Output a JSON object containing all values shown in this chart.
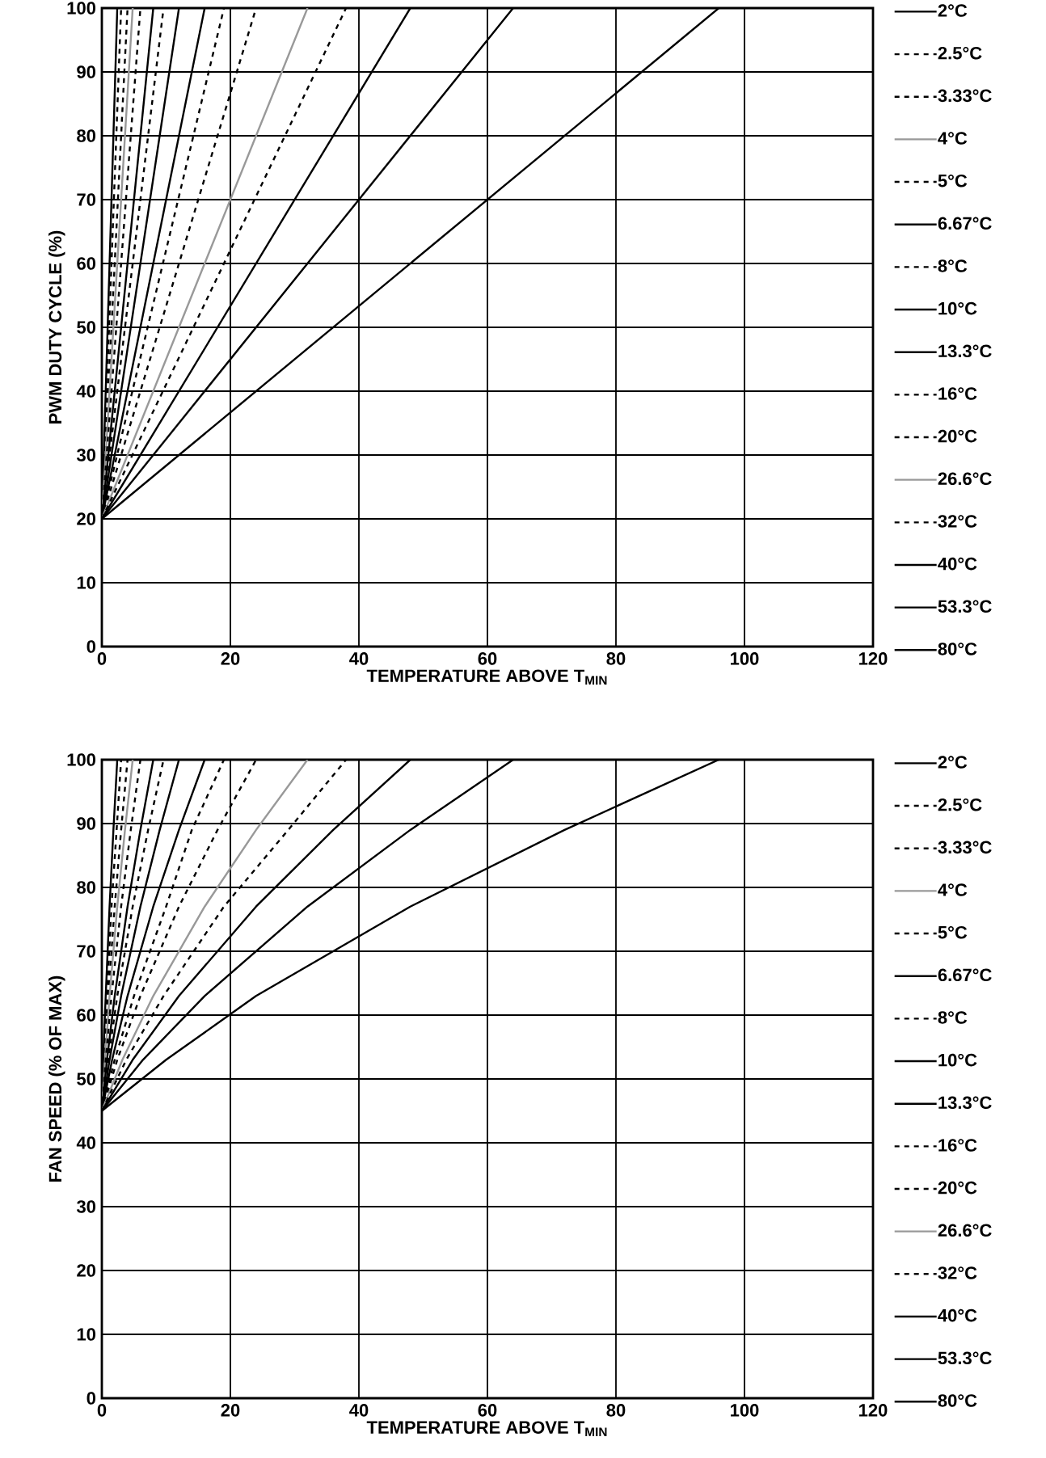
{
  "chart_data": [
    {
      "type": "line",
      "xlabel": "TEMPERATURE ABOVE T$_{MIN}$",
      "ylabel": "PWM DUTY CYCLE (%)",
      "xlim": [
        0,
        120
      ],
      "ylim": [
        0,
        100
      ],
      "xticks": [
        0,
        20,
        40,
        60,
        80,
        100,
        120
      ],
      "yticks": [
        0,
        10,
        20,
        30,
        40,
        50,
        60,
        70,
        80,
        90,
        100
      ],
      "grid": true,
      "legend": "right",
      "series": [
        {
          "name": "2°C",
          "color": "#000000",
          "line_style": "solid",
          "x": [
            0,
            2.4
          ],
          "values": [
            20,
            100
          ]
        },
        {
          "name": "2.5°C",
          "color": "#000000",
          "line_style": "dashed",
          "x": [
            0,
            3
          ],
          "values": [
            20,
            100
          ]
        },
        {
          "name": "3.33°C",
          "color": "#000000",
          "line_style": "dashed",
          "x": [
            0,
            4
          ],
          "values": [
            20,
            100
          ]
        },
        {
          "name": "4°C",
          "color": "#999999",
          "line_style": "solid",
          "x": [
            0,
            4.8
          ],
          "values": [
            20,
            100
          ]
        },
        {
          "name": "5°C",
          "color": "#000000",
          "line_style": "dashed",
          "x": [
            0,
            6
          ],
          "values": [
            20,
            100
          ]
        },
        {
          "name": "6.67°C",
          "color": "#000000",
          "line_style": "solid",
          "x": [
            0,
            8
          ],
          "values": [
            20,
            100
          ]
        },
        {
          "name": "8°C",
          "color": "#000000",
          "line_style": "dashed",
          "x": [
            0,
            9.6
          ],
          "values": [
            20,
            100
          ]
        },
        {
          "name": "10°C",
          "color": "#000000",
          "line_style": "solid",
          "x": [
            0,
            12
          ],
          "values": [
            20,
            100
          ]
        },
        {
          "name": "13.3°C",
          "color": "#000000",
          "line_style": "solid",
          "x": [
            0,
            16
          ],
          "values": [
            20,
            100
          ]
        },
        {
          "name": "16°C",
          "color": "#000000",
          "line_style": "dashed",
          "x": [
            0,
            19
          ],
          "values": [
            20,
            100
          ]
        },
        {
          "name": "20°C",
          "color": "#000000",
          "line_style": "dashed",
          "x": [
            0,
            24
          ],
          "values": [
            20,
            100
          ]
        },
        {
          "name": "26.6°C",
          "color": "#999999",
          "line_style": "solid",
          "x": [
            0,
            32
          ],
          "values": [
            20,
            100
          ]
        },
        {
          "name": "32°C",
          "color": "#000000",
          "line_style": "dashed",
          "x": [
            0,
            38
          ],
          "values": [
            20,
            100
          ]
        },
        {
          "name": "40°C",
          "color": "#000000",
          "line_style": "solid",
          "x": [
            0,
            48
          ],
          "values": [
            20,
            100
          ]
        },
        {
          "name": "53.3°C",
          "color": "#000000",
          "line_style": "solid",
          "x": [
            0,
            64
          ],
          "values": [
            20,
            100
          ]
        },
        {
          "name": "80°C",
          "color": "#000000",
          "line_style": "solid",
          "x": [
            0,
            96
          ],
          "values": [
            20,
            100
          ]
        }
      ]
    },
    {
      "type": "line",
      "xlabel": "TEMPERATURE ABOVE T$_{MIN}$",
      "ylabel": "FAN SPEED (% OF MAX)",
      "xlim": [
        0,
        120
      ],
      "ylim": [
        0,
        100
      ],
      "xticks": [
        0,
        20,
        40,
        60,
        80,
        100,
        120
      ],
      "yticks": [
        0,
        10,
        20,
        30,
        40,
        50,
        60,
        70,
        80,
        90,
        100
      ],
      "grid": true,
      "legend": "right",
      "series": [
        {
          "name": "2°C",
          "color": "#000000",
          "line_style": "solid",
          "x": [
            0,
            0.2,
            0.6,
            1.2,
            1.8,
            2.4
          ],
          "values": [
            45,
            53,
            63,
            77,
            89,
            100
          ]
        },
        {
          "name": "2.5°C",
          "color": "#000000",
          "line_style": "dashed",
          "x": [
            0,
            0.3,
            0.8,
            1.5,
            2.3,
            3
          ],
          "values": [
            45,
            53,
            63,
            77,
            89,
            100
          ]
        },
        {
          "name": "3.33°C",
          "color": "#000000",
          "line_style": "dashed",
          "x": [
            0,
            0.4,
            1,
            2,
            3,
            4
          ],
          "values": [
            45,
            53,
            63,
            77,
            89,
            100
          ]
        },
        {
          "name": "4°C",
          "color": "#999999",
          "line_style": "solid",
          "x": [
            0,
            0.5,
            1.2,
            2.4,
            3.6,
            4.8
          ],
          "values": [
            45,
            53,
            63,
            77,
            89,
            100
          ]
        },
        {
          "name": "5°C",
          "color": "#000000",
          "line_style": "dashed",
          "x": [
            0,
            0.6,
            1.5,
            3,
            4.5,
            6
          ],
          "values": [
            45,
            53,
            63,
            77,
            89,
            100
          ]
        },
        {
          "name": "6.67°C",
          "color": "#000000",
          "line_style": "solid",
          "x": [
            0,
            0.8,
            2,
            4,
            6,
            8
          ],
          "values": [
            45,
            53,
            63,
            77,
            89,
            100
          ]
        },
        {
          "name": "8°C",
          "color": "#000000",
          "line_style": "dashed",
          "x": [
            0,
            1,
            2.4,
            4.8,
            7.2,
            9.6
          ],
          "values": [
            45,
            53,
            63,
            77,
            89,
            100
          ]
        },
        {
          "name": "10°C",
          "color": "#000000",
          "line_style": "solid",
          "x": [
            0,
            1.2,
            3,
            6,
            9,
            12
          ],
          "values": [
            45,
            53,
            63,
            77,
            89,
            100
          ]
        },
        {
          "name": "13.3°C",
          "color": "#000000",
          "line_style": "solid",
          "x": [
            0,
            1.6,
            4,
            8,
            12,
            16
          ],
          "values": [
            45,
            53,
            63,
            77,
            89,
            100
          ]
        },
        {
          "name": "16°C",
          "color": "#000000",
          "line_style": "dashed",
          "x": [
            0,
            2,
            5,
            10,
            14,
            19
          ],
          "values": [
            45,
            53,
            63,
            77,
            89,
            100
          ]
        },
        {
          "name": "20°C",
          "color": "#000000",
          "line_style": "dashed",
          "x": [
            0,
            2.4,
            6,
            12,
            18,
            24
          ],
          "values": [
            45,
            53,
            63,
            77,
            89,
            100
          ]
        },
        {
          "name": "26.6°C",
          "color": "#999999",
          "line_style": "solid",
          "x": [
            0,
            3.2,
            8,
            16,
            24,
            32
          ],
          "values": [
            45,
            53,
            63,
            77,
            89,
            100
          ]
        },
        {
          "name": "32°C",
          "color": "#000000",
          "line_style": "dashed",
          "x": [
            0,
            3.8,
            9.6,
            19,
            29,
            38
          ],
          "values": [
            45,
            53,
            63,
            77,
            89,
            100
          ]
        },
        {
          "name": "40°C",
          "color": "#000000",
          "line_style": "solid",
          "x": [
            0,
            4.8,
            12,
            24,
            36,
            48
          ],
          "values": [
            45,
            53,
            63,
            77,
            89,
            100
          ]
        },
        {
          "name": "53.3°C",
          "color": "#000000",
          "line_style": "solid",
          "x": [
            0,
            6.4,
            16,
            32,
            48,
            64
          ],
          "values": [
            45,
            53,
            63,
            77,
            89,
            100
          ]
        },
        {
          "name": "80°C",
          "color": "#000000",
          "line_style": "solid",
          "x": [
            0,
            10,
            24,
            48,
            72,
            96
          ],
          "values": [
            45,
            53,
            63,
            77,
            89,
            100
          ]
        }
      ]
    }
  ]
}
